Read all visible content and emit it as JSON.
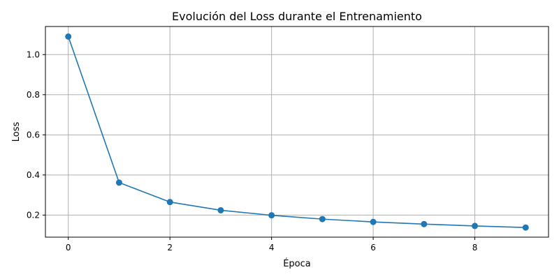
{
  "chart_data": {
    "type": "line",
    "title": "Evolución del Loss durante el Entrenamiento",
    "xlabel": "Época",
    "ylabel": "Loss",
    "xlim": [
      -0.45,
      9.45
    ],
    "ylim": [
      0.09,
      1.14
    ],
    "xticks": [
      0,
      2,
      4,
      6,
      8
    ],
    "yticks": [
      0.2,
      0.4,
      0.6,
      0.8,
      1.0
    ],
    "grid": true,
    "series": [
      {
        "color": "#1f77b4",
        "marker": "circle",
        "x": [
          0,
          1,
          2,
          3,
          4,
          5,
          6,
          7,
          8,
          9
        ],
        "values": [
          1.09,
          0.362,
          0.265,
          0.224,
          0.199,
          0.18,
          0.166,
          0.155,
          0.146,
          0.138
        ]
      }
    ]
  }
}
